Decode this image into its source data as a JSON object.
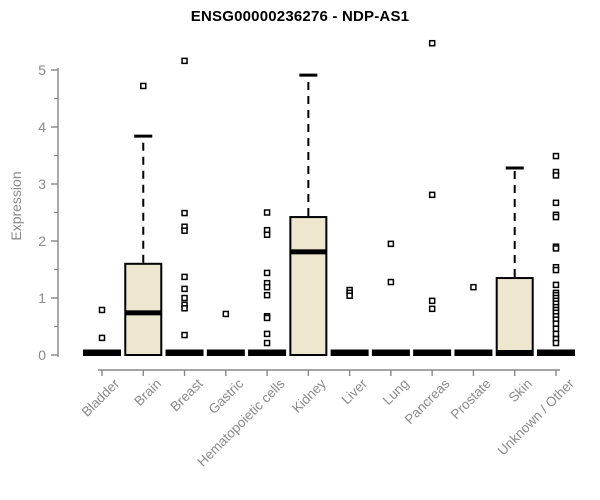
{
  "title": "ENSG00000236276 - NDP-AS1",
  "colors": {
    "background": "#ffffff",
    "box_fill": "#ede7cf",
    "box_stroke": "#000000",
    "median": "#000000",
    "outlier_stroke": "#000000",
    "axis": "#878787",
    "tick_label": "#8a8a8a",
    "title_text": "#000000"
  },
  "chart_data": {
    "type": "boxplot",
    "title": "ENSG00000236276 - NDP-AS1",
    "xlabel": "",
    "ylabel": "Expression",
    "ylim": [
      0,
      5
    ],
    "yticks": [
      0,
      1,
      2,
      3,
      4,
      5
    ],
    "minor_tick_interval": 0.5,
    "grid": false,
    "legend": "none",
    "categories": [
      "Bladder",
      "Brain",
      "Breast",
      "Gastric",
      "Hematopoietic cells",
      "Kidney",
      "Liver",
      "Lung",
      "Pancreas",
      "Prostate",
      "Skin",
      "Unknown / Other"
    ],
    "boxes": [
      {
        "category": "Bladder",
        "q1": 0,
        "median": 0,
        "q3": 0,
        "whisker_low": 0,
        "whisker_high": 0,
        "outliers": [
          0.79,
          0.3
        ]
      },
      {
        "category": "Brain",
        "q1": 0,
        "median": 0.74,
        "q3": 1.6,
        "whisker_low": 0,
        "whisker_high": 3.84,
        "outliers": [
          4.72
        ]
      },
      {
        "category": "Breast",
        "q1": 0,
        "median": 0,
        "q3": 0,
        "whisker_low": 0,
        "whisker_high": 0,
        "outliers": [
          5.16,
          2.49,
          2.25,
          2.18,
          1.37,
          1.16,
          1.0,
          0.88,
          0.82,
          0.35
        ]
      },
      {
        "category": "Gastric",
        "q1": 0,
        "median": 0,
        "q3": 0,
        "whisker_low": 0,
        "whisker_high": 0,
        "outliers": [
          0.72
        ]
      },
      {
        "category": "Hematopoietic cells",
        "q1": 0,
        "median": 0,
        "q3": 0,
        "whisker_low": 0,
        "whisker_high": 0,
        "outliers": [
          2.5,
          2.19,
          2.11,
          1.44,
          1.26,
          1.19,
          1.05,
          0.68,
          0.65,
          0.37,
          0.21
        ]
      },
      {
        "category": "Kidney",
        "q1": 0,
        "median": 1.81,
        "q3": 2.42,
        "whisker_low": 0,
        "whisker_high": 4.91,
        "outliers": []
      },
      {
        "category": "Liver",
        "q1": 0,
        "median": 0,
        "q3": 0,
        "whisker_low": 0,
        "whisker_high": 0,
        "outliers": [
          1.14,
          1.09,
          1.04
        ]
      },
      {
        "category": "Lung",
        "q1": 0,
        "median": 0,
        "q3": 0,
        "whisker_low": 0,
        "whisker_high": 0,
        "outliers": [
          1.95,
          1.28
        ]
      },
      {
        "category": "Pancreas",
        "q1": 0,
        "median": 0,
        "q3": 0,
        "whisker_low": 0,
        "whisker_high": 0,
        "outliers": [
          5.47,
          2.81,
          0.95,
          0.81
        ]
      },
      {
        "category": "Prostate",
        "q1": 0,
        "median": 0,
        "q3": 0,
        "whisker_low": 0,
        "whisker_high": 0,
        "outliers": [
          1.19
        ]
      },
      {
        "category": "Skin",
        "q1": 0,
        "median": 0,
        "q3": 1.35,
        "whisker_low": 0,
        "whisker_high": 3.28,
        "outliers": []
      },
      {
        "category": "Unknown / Other",
        "q1": 0,
        "median": 0,
        "q3": 0,
        "whisker_low": 0,
        "whisker_high": 0,
        "outliers": [
          3.49,
          3.21,
          3.15,
          2.67,
          2.46,
          2.42,
          1.9,
          1.87,
          1.54,
          1.49,
          1.23,
          1.09,
          1.05,
          1.0,
          0.95,
          0.9,
          0.84,
          0.79,
          0.74,
          0.68,
          0.62,
          0.55,
          0.46,
          0.37,
          0.28,
          0.21
        ]
      }
    ]
  }
}
